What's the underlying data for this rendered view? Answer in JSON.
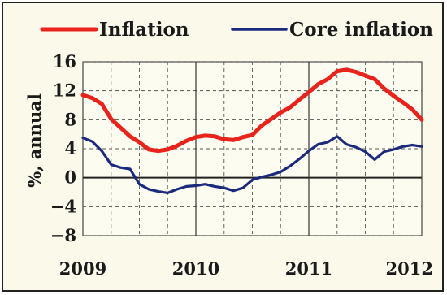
{
  "chart_data": {
    "type": "line",
    "title": "",
    "xlabel": "",
    "ylabel": "%, annual",
    "ylim": [
      -8,
      16
    ],
    "yticks": [
      -8,
      -4,
      0,
      4,
      8,
      12,
      16
    ],
    "xlim": [
      2009.0,
      2012.0
    ],
    "xticks": [
      {
        "value": 2009.0,
        "label": "2009"
      },
      {
        "value": 2010.0,
        "label": "2010"
      },
      {
        "value": 2011.0,
        "label": "2011"
      },
      {
        "value": 2012.0,
        "label": "2012"
      }
    ],
    "grid": true,
    "legend_position": "top",
    "series": [
      {
        "name": "Inflation",
        "color": "#e8231c",
        "x": [
          2009.0,
          2009.083,
          2009.167,
          2009.25,
          2009.333,
          2009.417,
          2009.5,
          2009.583,
          2009.667,
          2009.75,
          2009.833,
          2009.917,
          2010.0,
          2010.083,
          2010.167,
          2010.25,
          2010.333,
          2010.417,
          2010.5,
          2010.583,
          2010.667,
          2010.75,
          2010.833,
          2010.917,
          2011.0,
          2011.083,
          2011.167,
          2011.25,
          2011.333,
          2011.417,
          2011.5,
          2011.583,
          2011.667,
          2011.75,
          2011.833,
          2011.917,
          2012.0
        ],
        "values": [
          11.4,
          11.0,
          10.2,
          8.1,
          6.9,
          5.7,
          4.9,
          3.9,
          3.7,
          3.9,
          4.4,
          5.1,
          5.6,
          5.8,
          5.7,
          5.3,
          5.2,
          5.6,
          5.9,
          7.2,
          8.1,
          9.0,
          9.7,
          10.8,
          11.8,
          12.9,
          13.6,
          14.7,
          14.9,
          14.6,
          14.1,
          13.6,
          12.3,
          11.3,
          10.4,
          9.4,
          8.0
        ]
      },
      {
        "name": "Core inflation",
        "color": "#1c2a7e",
        "x": [
          2009.0,
          2009.083,
          2009.167,
          2009.25,
          2009.333,
          2009.417,
          2009.5,
          2009.583,
          2009.667,
          2009.75,
          2009.833,
          2009.917,
          2010.0,
          2010.083,
          2010.167,
          2010.25,
          2010.333,
          2010.417,
          2010.5,
          2010.583,
          2010.667,
          2010.75,
          2010.833,
          2010.917,
          2011.0,
          2011.083,
          2011.167,
          2011.25,
          2011.333,
          2011.417,
          2011.5,
          2011.583,
          2011.667,
          2011.75,
          2011.833,
          2011.917,
          2012.0
        ],
        "values": [
          5.5,
          5.0,
          3.7,
          1.8,
          1.4,
          1.2,
          -0.9,
          -1.6,
          -1.9,
          -2.1,
          -1.6,
          -1.2,
          -1.1,
          -0.9,
          -1.2,
          -1.4,
          -1.8,
          -1.4,
          -0.3,
          0.1,
          0.4,
          0.8,
          1.6,
          2.6,
          3.7,
          4.6,
          4.9,
          5.7,
          4.6,
          4.2,
          3.6,
          2.5,
          3.6,
          3.9,
          4.3,
          4.5,
          4.3
        ]
      }
    ]
  }
}
